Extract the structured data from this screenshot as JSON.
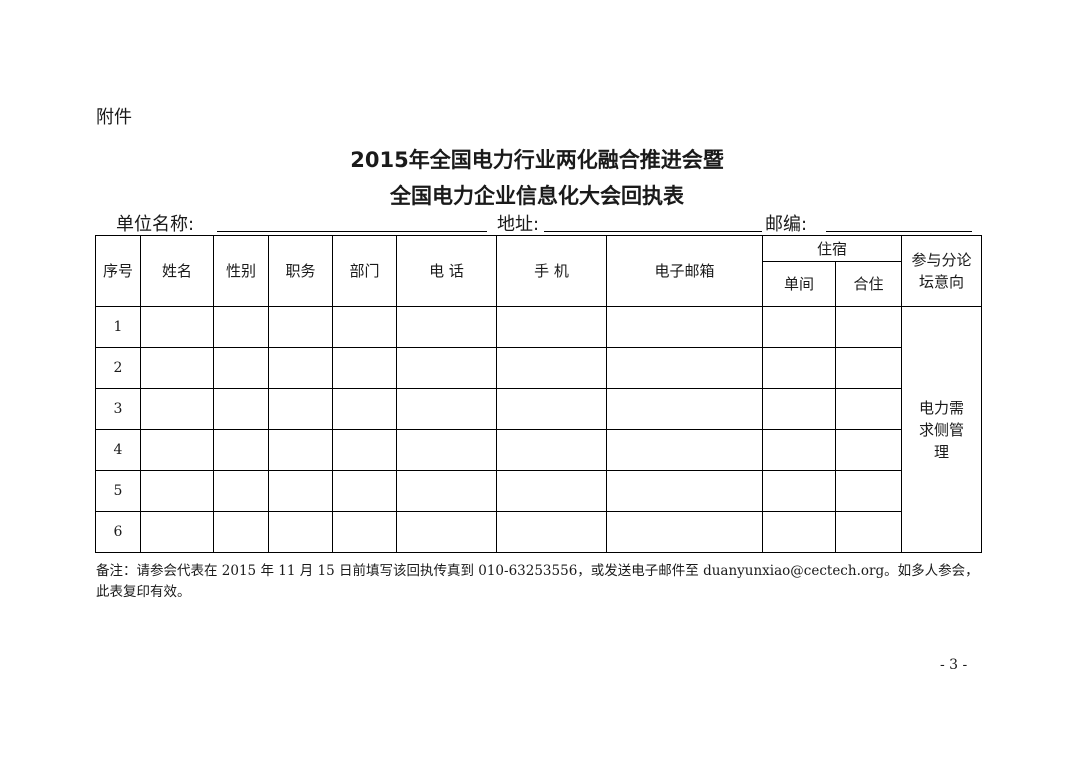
{
  "attachment_label": "附件",
  "title_line1": "2015年全国电力行业两化融合推进会暨",
  "title_line2": "全国电力企业信息化大会回执表",
  "fields": {
    "unit_name": "单位名称:",
    "address": "地址:",
    "postcode": "邮编:"
  },
  "table": {
    "headers": {
      "index": "序号",
      "name": "姓名",
      "gender": "性别",
      "position": "职务",
      "department": "部门",
      "phone": "电 话",
      "mobile": "手 机",
      "email": "电子邮箱",
      "lodging": "住宿",
      "single": "单间",
      "shared": "合住",
      "forum": "参与分论坛意向"
    },
    "rows": [
      "1",
      "2",
      "3",
      "4",
      "5",
      "6"
    ],
    "forum_value": "电力需求侧管理"
  },
  "note": "备注：请参会代表在 2015 年 11 月 15 日前填写该回执传真到 010-63253556，或发送电子邮件至 duanyunxiao@cectech.org。如多人参会，此表复印有效。",
  "page_number": "- 3 -"
}
